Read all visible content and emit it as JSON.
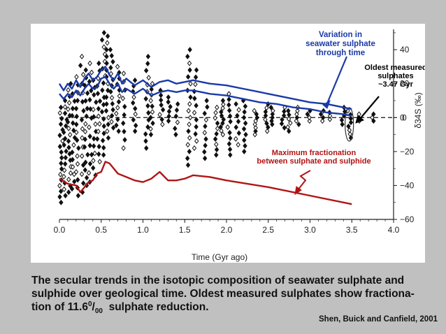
{
  "chart_data": {
    "type": "scatter",
    "xlabel": "Time (Gyr ago)",
    "ylabel": "δ34S (‰)",
    "xlim": [
      0.0,
      4.0
    ],
    "ylim": [
      -60,
      52
    ],
    "xticks": [
      "0.0",
      "0.5",
      "1.0",
      "1.5",
      "2.0",
      "2.5",
      "3.0",
      "3.5",
      "4.0"
    ],
    "yticks": [
      "40",
      "20",
      "0",
      "-20",
      "-40",
      "-60"
    ],
    "reference_line_y": 0,
    "series": [
      {
        "name": "Variation in seawater sulphate through time",
        "kind": "upper-line",
        "color": "#1a3aa8",
        "x": [
          0.0,
          0.05,
          0.1,
          0.15,
          0.2,
          0.25,
          0.3,
          0.35,
          0.4,
          0.45,
          0.5,
          0.55,
          0.6,
          0.65,
          0.7,
          0.75,
          0.8,
          0.9,
          1.0,
          1.1,
          1.2,
          1.3,
          1.4,
          1.5,
          1.6,
          1.7,
          1.8,
          2.0,
          2.2,
          2.4,
          2.6,
          2.8,
          3.0,
          3.2,
          3.4,
          3.5
        ],
        "y": [
          20,
          16,
          20,
          17,
          22,
          18,
          23,
          26,
          22,
          24,
          28,
          30,
          25,
          22,
          26,
          20,
          23,
          19,
          22,
          18,
          21,
          22,
          20,
          21,
          22,
          21,
          20,
          19,
          17,
          15,
          13,
          11,
          9,
          8,
          6,
          5
        ]
      },
      {
        "name": "",
        "kind": "lower-line",
        "color": "#1a3aa8",
        "x": [
          0.0,
          0.05,
          0.1,
          0.15,
          0.2,
          0.25,
          0.3,
          0.35,
          0.4,
          0.45,
          0.5,
          0.55,
          0.6,
          0.65,
          0.7,
          0.75,
          0.8,
          0.9,
          1.0,
          1.1,
          1.2,
          1.3,
          1.4,
          1.5,
          1.6,
          1.7,
          1.8,
          2.0,
          2.2,
          2.4,
          2.6,
          2.8,
          3.0,
          3.2,
          3.4,
          3.5
        ],
        "y": [
          14,
          11,
          14,
          12,
          16,
          13,
          17,
          20,
          17,
          18,
          23,
          24,
          20,
          17,
          20,
          15,
          17,
          14,
          17,
          13,
          15,
          16,
          15,
          16,
          16,
          15,
          14,
          13,
          11,
          9,
          8,
          6,
          5,
          3,
          2,
          1
        ]
      },
      {
        "name": "Maximum fractionation between sulphate and sulphide",
        "kind": "line",
        "color": "#b01414",
        "x": [
          0.0,
          0.1,
          0.2,
          0.25,
          0.3,
          0.35,
          0.4,
          0.45,
          0.5,
          0.55,
          0.6,
          0.65,
          0.7,
          0.8,
          0.9,
          1.0,
          1.1,
          1.2,
          1.3,
          1.4,
          1.5,
          1.6,
          1.8,
          2.0,
          2.5,
          3.0,
          3.5
        ],
        "y": [
          -36,
          -39,
          -40,
          -44,
          -41,
          -38,
          -37,
          -33,
          -32,
          -26,
          -27,
          -30,
          -33,
          -35,
          -37,
          -38,
          -36,
          -32,
          -37,
          -37,
          -36,
          -34,
          -35,
          -37,
          -41,
          -46,
          -51
        ]
      }
    ],
    "clusters": [
      {
        "x": 0.02,
        "ymin": -50,
        "ymax": 6,
        "n": 18
      },
      {
        "x": 0.07,
        "ymin": -46,
        "ymax": 10,
        "n": 16
      },
      {
        "x": 0.12,
        "ymin": -44,
        "ymax": 20,
        "n": 18
      },
      {
        "x": 0.17,
        "ymin": -42,
        "ymax": 14,
        "n": 14
      },
      {
        "x": 0.22,
        "ymin": -46,
        "ymax": 24,
        "n": 16
      },
      {
        "x": 0.27,
        "ymin": -44,
        "ymax": 36,
        "n": 16
      },
      {
        "x": 0.32,
        "ymin": -40,
        "ymax": 28,
        "n": 16
      },
      {
        "x": 0.37,
        "ymin": -38,
        "ymax": 32,
        "n": 14
      },
      {
        "x": 0.42,
        "ymin": -34,
        "ymax": 22,
        "n": 14
      },
      {
        "x": 0.47,
        "ymin": -26,
        "ymax": 32,
        "n": 14
      },
      {
        "x": 0.53,
        "ymin": -22,
        "ymax": 50,
        "n": 18
      },
      {
        "x": 0.58,
        "ymin": -12,
        "ymax": 48,
        "n": 16
      },
      {
        "x": 0.63,
        "ymin": -6,
        "ymax": 40,
        "n": 14
      },
      {
        "x": 0.7,
        "ymin": -8,
        "ymax": 30,
        "n": 12
      },
      {
        "x": 0.78,
        "ymin": -18,
        "ymax": 26,
        "n": 10
      },
      {
        "x": 0.9,
        "ymin": -8,
        "ymax": 22,
        "n": 10
      },
      {
        "x": 1.05,
        "ymin": -18,
        "ymax": 36,
        "n": 14
      },
      {
        "x": 1.1,
        "ymin": -10,
        "ymax": 20,
        "n": 10
      },
      {
        "x": 1.22,
        "ymin": -4,
        "ymax": 16,
        "n": 8
      },
      {
        "x": 1.32,
        "ymin": -2,
        "ymax": 12,
        "n": 6
      },
      {
        "x": 1.4,
        "ymin": -10,
        "ymax": 8,
        "n": 6
      },
      {
        "x": 1.55,
        "ymin": -28,
        "ymax": 40,
        "n": 18
      },
      {
        "x": 1.63,
        "ymin": -18,
        "ymax": 28,
        "n": 12
      },
      {
        "x": 1.75,
        "ymin": -24,
        "ymax": 10,
        "n": 10
      },
      {
        "x": 1.88,
        "ymin": -22,
        "ymax": 6,
        "n": 10
      },
      {
        "x": 1.95,
        "ymin": -10,
        "ymax": 10,
        "n": 10
      },
      {
        "x": 2.03,
        "ymin": -22,
        "ymax": 14,
        "n": 12
      },
      {
        "x": 2.13,
        "ymin": -16,
        "ymax": 8,
        "n": 8
      },
      {
        "x": 2.22,
        "ymin": -20,
        "ymax": 10,
        "n": 10
      },
      {
        "x": 2.35,
        "ymin": -10,
        "ymax": 4,
        "n": 8
      },
      {
        "x": 2.48,
        "ymin": -8,
        "ymax": 8,
        "n": 8
      },
      {
        "x": 2.55,
        "ymin": -4,
        "ymax": 6,
        "n": 6
      },
      {
        "x": 2.68,
        "ymin": -6,
        "ymax": 6,
        "n": 6
      },
      {
        "x": 2.75,
        "ymin": -8,
        "ymax": 4,
        "n": 6
      },
      {
        "x": 2.85,
        "ymin": -4,
        "ymax": 6,
        "n": 6
      },
      {
        "x": 2.98,
        "ymin": -2,
        "ymax": 4,
        "n": 4
      },
      {
        "x": 3.15,
        "ymin": -2,
        "ymax": 4,
        "n": 4
      },
      {
        "x": 3.25,
        "ymin": -1,
        "ymax": 3,
        "n": 3
      },
      {
        "x": 3.4,
        "ymin": -4,
        "ymax": 6,
        "n": 5
      },
      {
        "x": 3.47,
        "ymin": -12,
        "ymax": 4,
        "n": 8
      },
      {
        "x": 3.6,
        "ymin": -2,
        "ymax": 2,
        "n": 3
      },
      {
        "x": 3.75,
        "ymin": -2,
        "ymax": 2,
        "n": 3
      }
    ],
    "annotations": [
      {
        "text_lines": [
          "Variation in",
          "seawater sulphate",
          "through time"
        ],
        "color": "#1a3aa8"
      },
      {
        "text_lines": [
          "Oldest measured",
          "sulphates",
          "~3.47 Gyr"
        ],
        "color": "#000000"
      },
      {
        "text_lines": [
          "Maximum fractionation",
          "between sulphate and sulphide"
        ],
        "color": "#b01414"
      }
    ],
    "grid": false
  },
  "caption": {
    "line1": "The secular trends in the isotopic composition of seawater sulphate and",
    "line2": "sulphide over geological time. Oldest measured sulphates show fractiona-",
    "line3_pre": "tion of 11.6",
    "line3_sup": "0",
    "line3_slash": "/",
    "line3_sub": "00",
    "line3_post": "  sulphate reduction."
  },
  "credit": "Shen, Buick and Canfield, 2001",
  "colors": {
    "background": "#c0c0c0",
    "sulphate": "#1a3aa8",
    "fractionation": "#b01414",
    "points": "#111111"
  }
}
